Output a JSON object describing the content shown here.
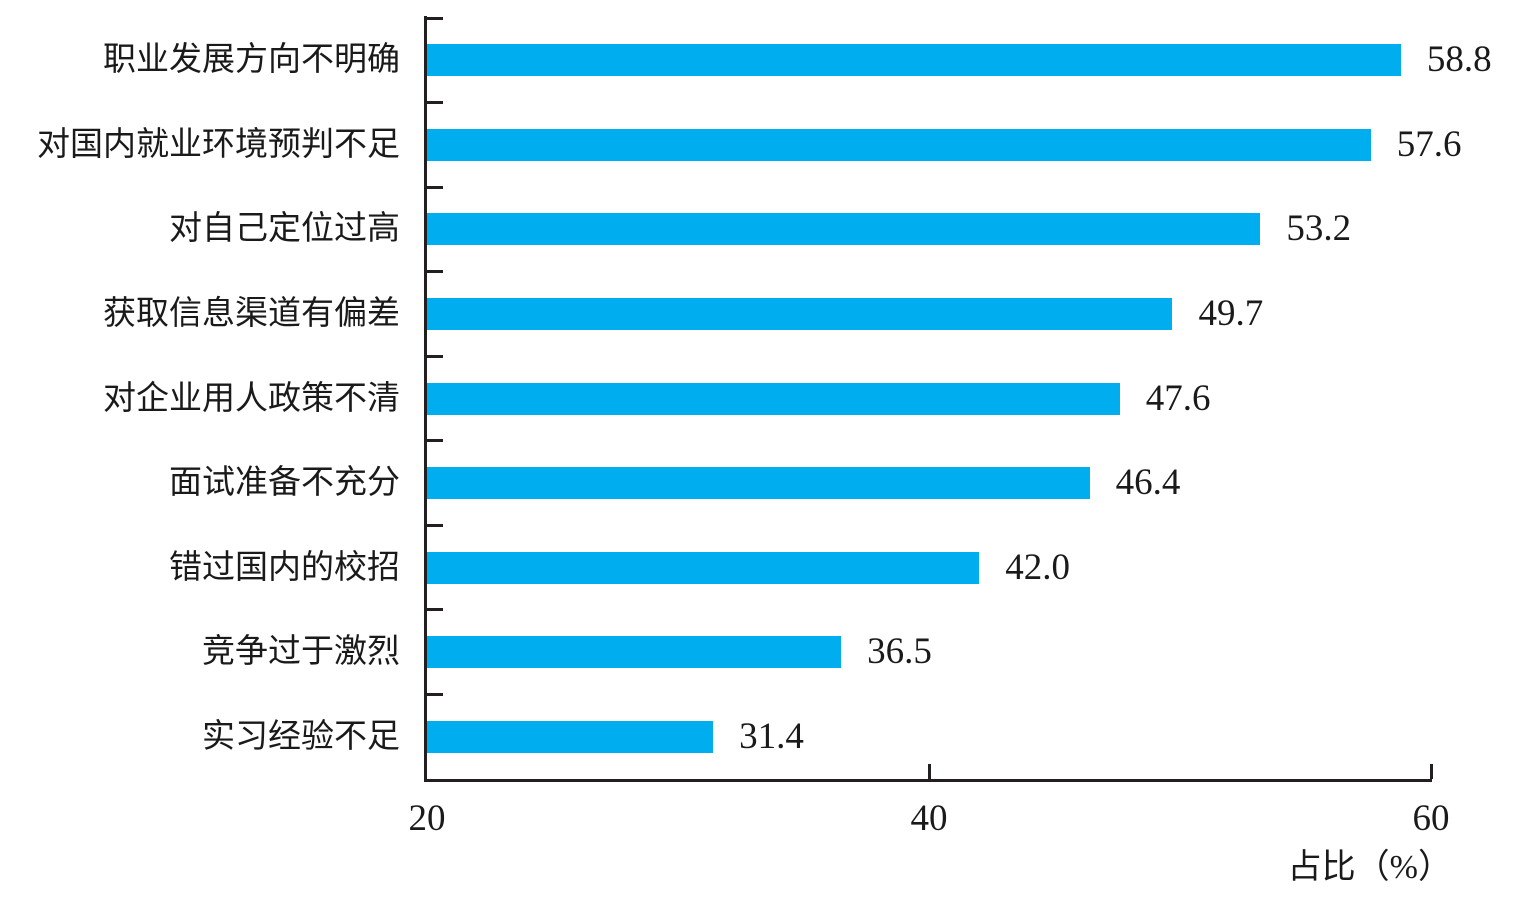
{
  "chart_data": {
    "type": "bar",
    "orientation": "horizontal",
    "title": "",
    "xlabel": "占比（%）",
    "ylabel": "",
    "categories": [
      "职业发展方向不明确",
      "对国内就业环境预判不足",
      "对自己定位过高",
      "获取信息渠道有偏差",
      "对企业用人政策不清",
      "面试准备不充分",
      "错过国内的校招",
      "竞争过于激烈",
      "实习经验不足"
    ],
    "values": [
      58.8,
      57.6,
      53.2,
      49.7,
      47.6,
      46.4,
      42.0,
      36.5,
      31.4
    ],
    "value_labels": [
      "58.8",
      "57.6",
      "53.2",
      "49.7",
      "47.6",
      "46.4",
      "42.0",
      "36.5",
      "31.4"
    ],
    "xlim": [
      20,
      60
    ],
    "x_ticks": [
      20,
      40,
      60
    ],
    "grid": false,
    "legend": false,
    "bar_color": "#00AEEF",
    "axis_color": "#231F20",
    "text_color": "#1A1A1A",
    "value_label_position": "right-of-bar",
    "tick_direction": "in"
  }
}
